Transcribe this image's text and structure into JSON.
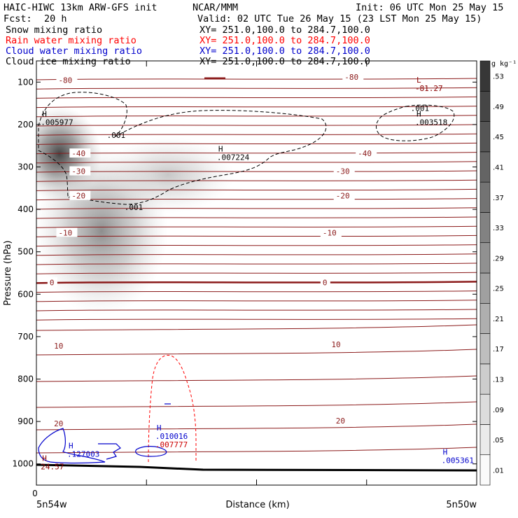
{
  "header": {
    "model": "HAIC-HIWC 13km ARW-GFS init",
    "org": "NCAR/MMM",
    "init": "Init: 06 UTC Mon 25 May 15",
    "fcst_label": "Fcst:",
    "fcst_value": "20 h",
    "valid": "Valid: 02 UTC Tue 26 May 15 (23 LST Mon 25 May 15)",
    "fields": [
      {
        "name": "Snow mixing ratio",
        "xy": "XY= 251.0,100.0 to 284.7,100.0",
        "color": "#000000"
      },
      {
        "name": "Rain water mixing ratio",
        "xy": "XY= 251.0,100.0 to 284.7,100.0",
        "color": "#ff0000"
      },
      {
        "name": "Cloud water mixing ratio",
        "xy": "XY= 251.0,100.0 to 284.7,100.0",
        "color": "#0000cc"
      },
      {
        "name": "Cloud ice mixing ratio",
        "xy": "XY= 251.0,100.0 to 284.7,100.0",
        "color": "#000000"
      }
    ]
  },
  "chart_data": {
    "type": "cross-section",
    "ylabel": "Pressure (hPa)",
    "xlabel": "Distance (km)",
    "x_origin_label": "0",
    "x_left_label": "5n54w",
    "x_right_label": "5n50w",
    "y_ticks": [
      100,
      200,
      300,
      400,
      500,
      600,
      700,
      800,
      900,
      1000
    ],
    "ylim": [
      50,
      1050
    ],
    "colorbar": {
      "unit": "g kg⁻¹",
      "levels": [
        ".01",
        ".05",
        ".09",
        ".13",
        ".17",
        ".21",
        ".25",
        ".29",
        ".33",
        ".37",
        ".41",
        ".45",
        ".49",
        ".53"
      ]
    },
    "temperature_contour_labels": [
      {
        "x": 0.05,
        "p": 95,
        "text": "-80"
      },
      {
        "x": 0.7,
        "p": 88,
        "text": "-80"
      },
      {
        "x": 0.08,
        "p": 268,
        "text": "-40"
      },
      {
        "x": 0.73,
        "p": 268,
        "text": "-40"
      },
      {
        "x": 0.08,
        "p": 310,
        "text": "-30"
      },
      {
        "x": 0.68,
        "p": 310,
        "text": "-30"
      },
      {
        "x": 0.08,
        "p": 368,
        "text": "-20"
      },
      {
        "x": 0.68,
        "p": 368,
        "text": "-20"
      },
      {
        "x": 0.05,
        "p": 455,
        "text": "-10"
      },
      {
        "x": 0.65,
        "p": 455,
        "text": "-10"
      },
      {
        "x": 0.03,
        "p": 572,
        "text": "0"
      },
      {
        "x": 0.65,
        "p": 572,
        "text": "0"
      },
      {
        "x": 0.04,
        "p": 722,
        "text": "10"
      },
      {
        "x": 0.67,
        "p": 718,
        "text": "10"
      },
      {
        "x": 0.04,
        "p": 905,
        "text": "20"
      },
      {
        "x": 0.68,
        "p": 898,
        "text": "20"
      }
    ],
    "extrema_labels": [
      {
        "x": 0.01,
        "p": 188,
        "sym": "H",
        "value": ".005977",
        "color": "#000000"
      },
      {
        "x": 0.16,
        "p": 218,
        "sym": "",
        "value": ".001",
        "color": "#000000"
      },
      {
        "x": 0.41,
        "p": 270,
        "sym": "H",
        "value": ".007224",
        "color": "#000000"
      },
      {
        "x": 0.2,
        "p": 388,
        "sym": "",
        "value": ".001",
        "color": "#000000"
      },
      {
        "x": 0.86,
        "p": 188,
        "sym": "H",
        "value": ".003518",
        "color": "#000000"
      },
      {
        "x": 0.85,
        "p": 155,
        "sym": "",
        "value": ".001",
        "color": "#000000"
      },
      {
        "x": 0.86,
        "p": 108,
        "sym": "L",
        "value": "-81.27",
        "color": "#8b0000"
      },
      {
        "x": 0.01,
        "p": 1000,
        "sym": "H",
        "value": "24.57",
        "color": "#8b0000"
      },
      {
        "x": 0.07,
        "p": 970,
        "sym": "H",
        "value": ".127003",
        "color": "#0000cc"
      },
      {
        "x": 0.27,
        "p": 928,
        "sym": "H",
        "value": ".010016",
        "color": "#0000cc"
      },
      {
        "x": 0.27,
        "p": 948,
        "sym": "",
        "value": ".007777",
        "color": "#cc0000"
      },
      {
        "x": 0.92,
        "p": 985,
        "sym": "H",
        "value": ".005361",
        "color": "#0000cc"
      }
    ]
  }
}
